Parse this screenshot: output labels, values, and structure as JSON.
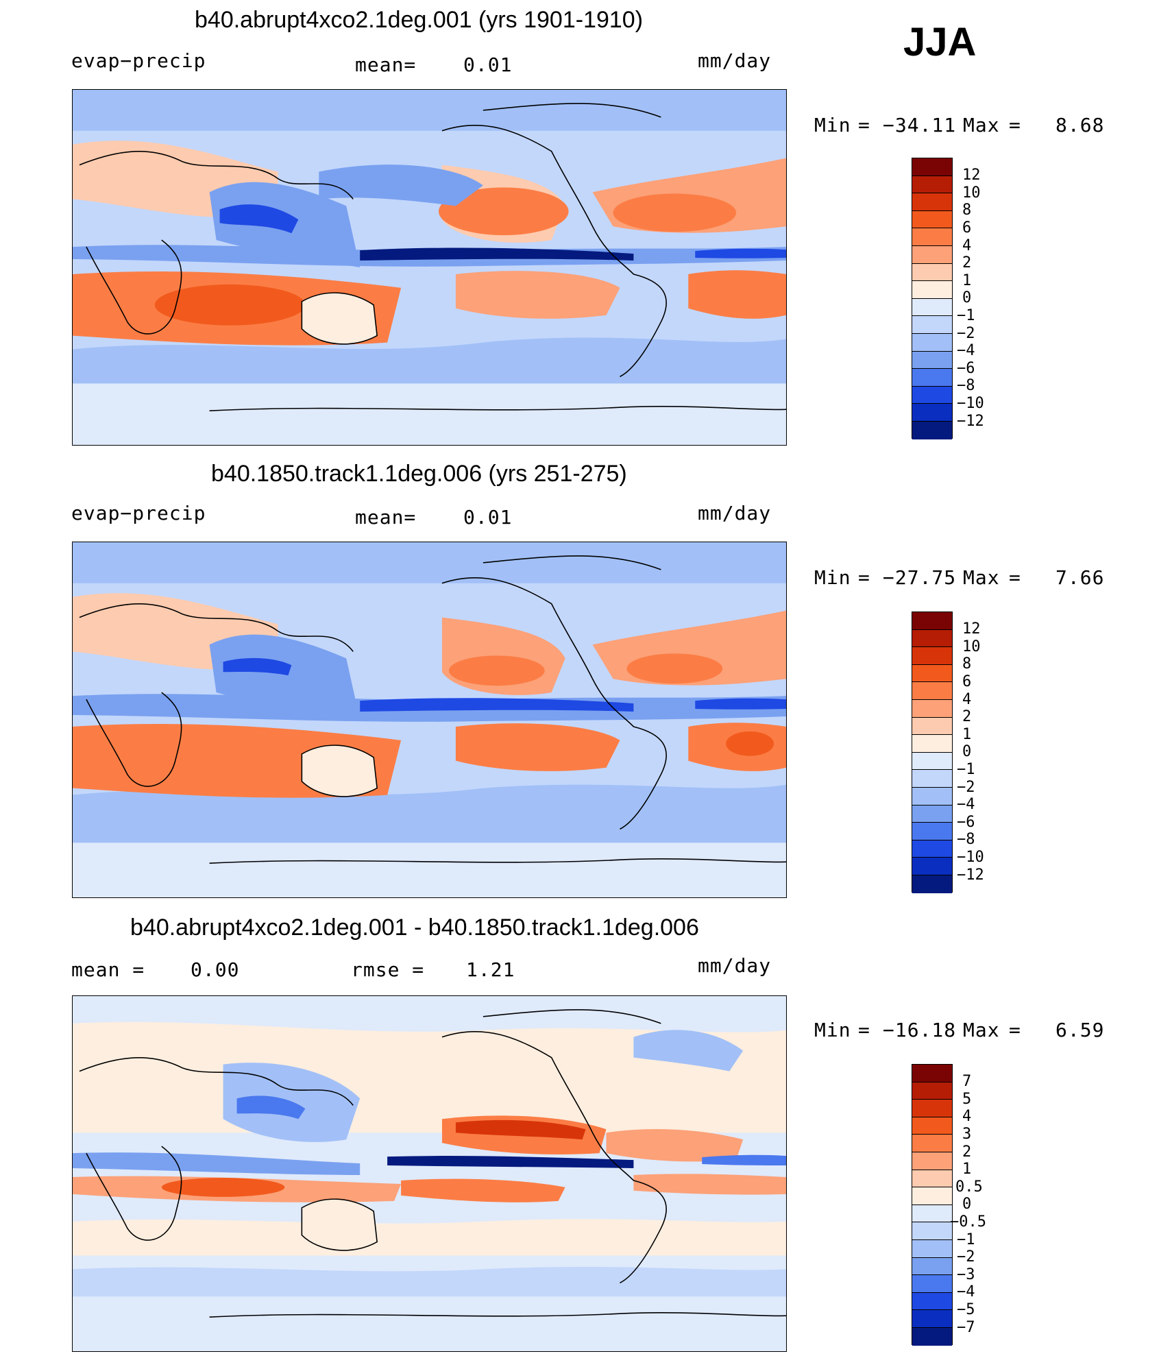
{
  "season": "JJA",
  "panels": [
    {
      "title": "b40.abrupt4xco2.1deg.001 (yrs 1901-1910)",
      "left_label": "evap−precip",
      "mid_label": "mean=",
      "mid_value": "0.01",
      "units": "mm/day",
      "min_label": "Min",
      "eq": "=",
      "min_value": "−34.11",
      "max_label": "Max",
      "max_value": "8.68"
    },
    {
      "title": "b40.1850.track1.1deg.006 (yrs 251-275)",
      "left_label": "evap−precip",
      "mid_label": "mean=",
      "mid_value": "0.01",
      "units": "mm/day",
      "min_label": "Min",
      "eq": "=",
      "min_value": "−27.75",
      "max_label": "Max",
      "max_value": "7.66"
    },
    {
      "title": "b40.abrupt4xco2.1deg.001 - b40.1850.track1.1deg.006",
      "left_label": "mean =",
      "left_value": "0.00",
      "mid_label": "rmse =",
      "mid_value": "1.21",
      "units": "mm/day",
      "min_label": "Min",
      "eq": "=",
      "min_value": "−16.18",
      "max_label": "Max",
      "max_value": "6.59"
    }
  ],
  "colorbars": [
    {
      "labels": [
        "12",
        "10",
        "8",
        "6",
        "4",
        "2",
        "1",
        "0",
        "−1",
        "−2",
        "−4",
        "−6",
        "−8",
        "−10",
        "−12"
      ],
      "colors": [
        "#7a0403",
        "#b51d05",
        "#d8340a",
        "#f25a1d",
        "#fb7d45",
        "#fca178",
        "#fdcbaf",
        "#fdeedf",
        "#dfeafb",
        "#c3d7fb",
        "#a2c0f7",
        "#7aa1f0",
        "#4a78ee",
        "#1f49e3",
        "#0a2ec0",
        "#041a7e"
      ]
    },
    {
      "labels": [
        "12",
        "10",
        "8",
        "6",
        "4",
        "2",
        "1",
        "0",
        "−1",
        "−2",
        "−4",
        "−6",
        "−8",
        "−10",
        "−12"
      ],
      "colors": [
        "#7a0403",
        "#b51d05",
        "#d8340a",
        "#f25a1d",
        "#fb7d45",
        "#fca178",
        "#fdcbaf",
        "#fdeedf",
        "#dfeafb",
        "#c3d7fb",
        "#a2c0f7",
        "#7aa1f0",
        "#4a78ee",
        "#1f49e3",
        "#0a2ec0",
        "#041a7e"
      ]
    },
    {
      "labels": [
        "7",
        "5",
        "4",
        "3",
        "2",
        "1",
        "0.5",
        "0",
        "−0.5",
        "−1",
        "−2",
        "−3",
        "−4",
        "−5",
        "−7"
      ],
      "colors": [
        "#7a0403",
        "#b51d05",
        "#d8340a",
        "#f25a1d",
        "#fb7d45",
        "#fca178",
        "#fdcbaf",
        "#fdeedf",
        "#dfeafb",
        "#c3d7fb",
        "#a2c0f7",
        "#7aa1f0",
        "#4a78ee",
        "#1f49e3",
        "#0a2ec0",
        "#041a7e"
      ]
    }
  ],
  "map_colors": {
    "strong_pos": "#f25a1d",
    "mid_pos": "#fb7d45",
    "weak_pos": "#fca178",
    "light_pos": "#fdcbaf",
    "near_zero_pos": "#fdeedf",
    "near_zero_neg": "#dfeafb",
    "light_neg": "#c3d7fb",
    "mid_neg": "#7aa1f0",
    "strong_neg": "#1f49e3",
    "deep_neg": "#041a7e",
    "coast": "#000000"
  }
}
